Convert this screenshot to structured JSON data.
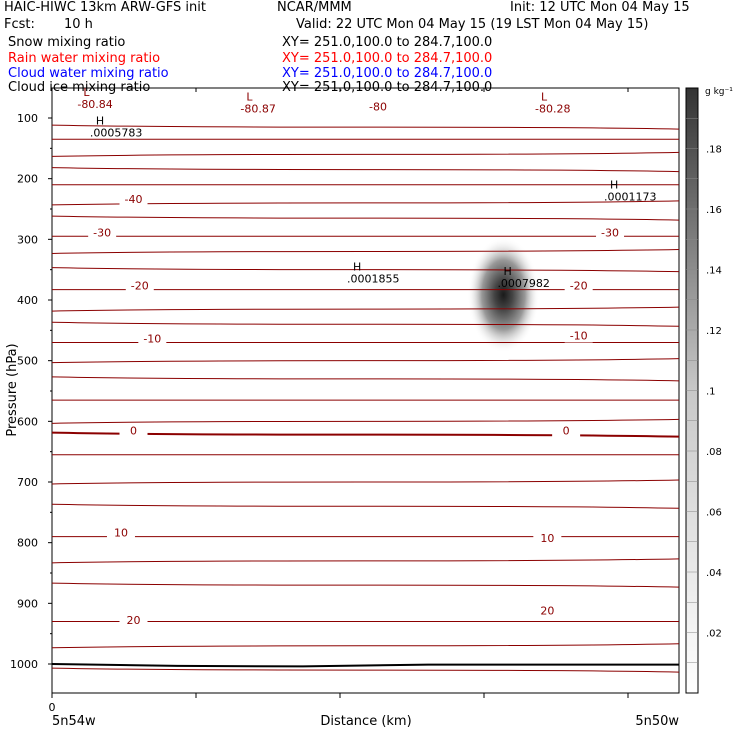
{
  "header": {
    "title": "HAIC-HIWC 13km ARW-GFS init",
    "org": "NCAR/MMM",
    "init": "Init: 12 UTC Mon 04 May 15",
    "fcst_label": "Fcst:",
    "fcst_value": "10 h",
    "valid": "Valid: 22 UTC Mon 04 May 15 (19 LST Mon 04 May 15)"
  },
  "fields": [
    {
      "name": "Snow mixing ratio",
      "xy": "XY= 251.0,100.0 to 284.7,100.0",
      "color": "#000000"
    },
    {
      "name": "Rain water mixing ratio",
      "xy": "XY= 251.0,100.0 to 284.7,100.0",
      "color": "#ff0000"
    },
    {
      "name": "Cloud water mixing ratio",
      "xy": "XY= 251.0,100.0 to 284.7,100.0",
      "color": "#0000ff"
    },
    {
      "name": "Cloud ice mixing ratio",
      "xy": "XY= 251.0,100.0 to 284.7,100.0",
      "color": "#000000"
    }
  ],
  "chart_data": {
    "type": "heatmap",
    "ylabel": "Pressure (hPa)",
    "xlabel": "Distance (km)",
    "y_ticks": [
      100,
      200,
      300,
      400,
      500,
      600,
      700,
      800,
      900,
      1000
    ],
    "ylim": [
      50,
      1050
    ],
    "x_tick_label": "0",
    "x_left_label": "5n54w",
    "x_right_label": "5n50w",
    "colorbar": {
      "unit_label": "g kg⁻¹",
      "ticks": [
        ".02",
        ".04",
        ".06",
        ".08",
        ".1",
        ".12",
        ".14",
        ".16",
        ".18"
      ],
      "min": 0,
      "max": 0.2
    },
    "ice_maximum": {
      "label": "H",
      "value": ".0007982",
      "x_frac": 0.72,
      "pressure": 375,
      "peak_g_per_kg": 0.2
    },
    "extrema": [
      {
        "type": "L",
        "value": "-80.84",
        "x_frac": 0.05,
        "pressure": 80
      },
      {
        "type": "L",
        "value": "-80.87",
        "x_frac": 0.31,
        "pressure": 88
      },
      {
        "type": "L",
        "value": "-80.28",
        "x_frac": 0.78,
        "pressure": 88
      },
      {
        "type": "H",
        "value": ".0005783",
        "x_frac": 0.07,
        "pressure": 127
      },
      {
        "type": "H",
        "value": ".0001173",
        "x_frac": 0.89,
        "pressure": 233
      },
      {
        "type": "H",
        "value": ".0001855",
        "x_frac": 0.48,
        "pressure": 368
      }
    ],
    "temperature_labels": [
      {
        "text": "-80",
        "x_frac": 0.52,
        "pressure": 88
      },
      {
        "text": "-40",
        "x_frac": 0.13,
        "pressure": 240
      },
      {
        "text": "-30",
        "x_frac": 0.08,
        "pressure": 295
      },
      {
        "text": "-30",
        "x_frac": 0.89,
        "pressure": 295
      },
      {
        "text": "-20",
        "x_frac": 0.14,
        "pressure": 383
      },
      {
        "text": "-20",
        "x_frac": 0.84,
        "pressure": 383
      },
      {
        "text": "-10",
        "x_frac": 0.16,
        "pressure": 470
      },
      {
        "text": "-10",
        "x_frac": 0.84,
        "pressure": 465
      },
      {
        "text": "0",
        "x_frac": 0.13,
        "pressure": 622
      },
      {
        "text": "0",
        "x_frac": 0.82,
        "pressure": 622
      },
      {
        "text": "10",
        "x_frac": 0.11,
        "pressure": 790
      },
      {
        "text": "10",
        "x_frac": 0.79,
        "pressure": 799
      },
      {
        "text": "20",
        "x_frac": 0.13,
        "pressure": 934
      },
      {
        "text": "20",
        "x_frac": 0.79,
        "pressure": 918
      }
    ],
    "isotherm_pressures": [
      115,
      135,
      160,
      185,
      210,
      240,
      265,
      295,
      320,
      350,
      383,
      415,
      440,
      470,
      500,
      530,
      565,
      600,
      622,
      655,
      700,
      740,
      790,
      830,
      870,
      930,
      970,
      1010
    ],
    "freezing_level_pressure": 622,
    "surface_pressure": [
      1000,
      1003,
      1004,
      1001,
      1001,
      1001
    ]
  }
}
